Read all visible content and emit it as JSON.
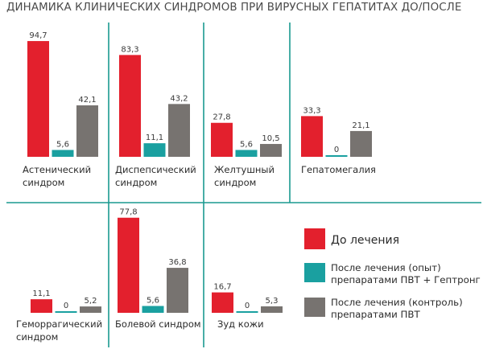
{
  "title": "ДИНАМИКА КЛИНИЧЕСКИХ СИНДРОМОВ ПРИ ВИРУСНЫХ ГЕПАТИТАХ ДО/ПОСЛЕ",
  "colors": {
    "before": "#e3202d",
    "after_experimental": "#1aa0a0",
    "after_control": "#777370",
    "grid": "#1a9a8f"
  },
  "legend": [
    {
      "label_lines": [
        "До лечения"
      ],
      "color_key": "before"
    },
    {
      "label_lines": [
        "После лечения (опыт)",
        "препаратами ПВТ + Гептронг"
      ],
      "color_key": "after_experimental"
    },
    {
      "label_lines": [
        "После лечения (контроль)",
        "препаратами ПВТ"
      ],
      "color_key": "after_control"
    }
  ],
  "chart_data": {
    "type": "bar",
    "title": "ДИНАМИКА КЛИНИЧЕСКИХ СИНДРОМОВ ПРИ ВИРУСНЫХ ГЕПАТИТАХ ДО/ПОСЛЕ",
    "ylim": [
      0,
      100
    ],
    "series": [
      {
        "name": "До лечения",
        "color_key": "before"
      },
      {
        "name": "После лечения (опыт) препаратами ПВТ + Гептронг",
        "color_key": "after_experimental"
      },
      {
        "name": "После лечения (контроль) препаратами ПВТ",
        "color_key": "after_control"
      }
    ],
    "groups": [
      {
        "label_lines": [
          "Астенический",
          "синдром"
        ],
        "values": [
          94.7,
          5.6,
          42.1
        ],
        "labels": [
          "94,7",
          "5,6",
          "42,1"
        ]
      },
      {
        "label_lines": [
          "Диспепсический",
          "синдром"
        ],
        "values": [
          83.3,
          11.1,
          43.2
        ],
        "labels": [
          "83,3",
          "11,1",
          "43,2"
        ]
      },
      {
        "label_lines": [
          "Желтушный",
          "синдром"
        ],
        "values": [
          27.8,
          5.6,
          10.5
        ],
        "labels": [
          "27,8",
          "5,6",
          "10,5"
        ]
      },
      {
        "label_lines": [
          "Гепатомегалия"
        ],
        "values": [
          33.3,
          0,
          21.1
        ],
        "labels": [
          "33,3",
          "0",
          "21,1"
        ]
      },
      {
        "label_lines": [
          "Геморрагический",
          "синдром"
        ],
        "values": [
          11.1,
          0,
          5.2
        ],
        "labels": [
          "11,1",
          "0",
          "5,2"
        ]
      },
      {
        "label_lines": [
          "Болевой синдром"
        ],
        "values": [
          77.8,
          5.6,
          36.8
        ],
        "labels": [
          "77,8",
          "5,6",
          "36,8"
        ]
      },
      {
        "label_lines": [
          "Зуд кожи"
        ],
        "values": [
          16.7,
          0,
          5.3
        ],
        "labels": [
          "16,7",
          "0",
          "5,3"
        ]
      }
    ]
  }
}
